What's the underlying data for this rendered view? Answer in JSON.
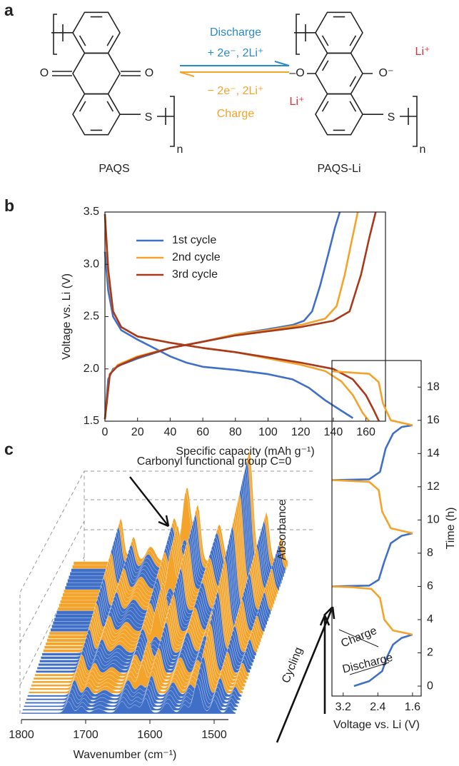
{
  "panel_labels": {
    "a": "a",
    "b": "b",
    "c": "c"
  },
  "scheme": {
    "discharge": "Discharge",
    "discharge_reagents": "+ 2e⁻, 2Li⁺",
    "charge_reagents": "− 2e⁻, 2Li⁺",
    "charge": "Charge",
    "reactant": {
      "name": "PAQS",
      "atoms": [
        "O",
        "O",
        "S",
        "n"
      ]
    },
    "product": {
      "name": "PAQS-Li",
      "atoms": [
        "–O",
        "O⁻",
        "Li⁺",
        "Li⁺",
        "S",
        "n"
      ]
    }
  },
  "chart_data": [
    {
      "type": "line",
      "xlabel": "Specific capacity (mAh g⁻¹)",
      "ylabel": "Voltage vs. Li (V)",
      "xlim": [
        0,
        172
      ],
      "xticks": [
        0,
        20,
        40,
        60,
        80,
        100,
        120,
        140,
        160
      ],
      "ylim": [
        1.5,
        3.5
      ],
      "yticks": [
        1.5,
        {
          "value": 2,
          "label": "2.0"
        },
        2.5,
        {
          "value": 3,
          "label": "3.0"
        },
        3.5
      ],
      "legend": "upper left",
      "series": [
        {
          "name": "1st cycle",
          "color": "#3f6fc6",
          "x": [
            0,
            2,
            5,
            10,
            20,
            30,
            40,
            50,
            60,
            80,
            100,
            115,
            125,
            135,
            145,
            152,
            null,
            0,
            2,
            5,
            10,
            20,
            40,
            60,
            80,
            100,
            115,
            122,
            127,
            132,
            137,
            141,
            144
          ],
          "values": [
            3.12,
            2.75,
            2.5,
            2.37,
            2.28,
            2.2,
            2.12,
            2.06,
            2.02,
            1.99,
            1.95,
            1.9,
            1.82,
            1.7,
            1.6,
            1.53,
            null,
            1.52,
            1.9,
            2.0,
            2.04,
            2.1,
            2.2,
            2.26,
            2.33,
            2.38,
            2.42,
            2.46,
            2.55,
            2.8,
            3.1,
            3.35,
            3.5
          ]
        },
        {
          "name": "2nd cycle",
          "color": "#f4a32b",
          "x": [
            0,
            2,
            5,
            10,
            20,
            40,
            60,
            80,
            100,
            120,
            135,
            145,
            152,
            158,
            162,
            null,
            0,
            3,
            8,
            20,
            40,
            60,
            80,
            100,
            120,
            135,
            142,
            147,
            151,
            155
          ],
          "values": [
            3.45,
            2.9,
            2.55,
            2.4,
            2.31,
            2.25,
            2.2,
            2.16,
            2.1,
            2.04,
            1.98,
            1.88,
            1.75,
            1.58,
            1.5,
            null,
            1.52,
            1.95,
            2.04,
            2.12,
            2.2,
            2.26,
            2.33,
            2.37,
            2.42,
            2.48,
            2.6,
            2.9,
            3.2,
            3.5
          ]
        },
        {
          "name": "3rd cycle",
          "color": "#a8391b",
          "x": [
            0,
            2,
            5,
            10,
            20,
            40,
            60,
            80,
            100,
            120,
            140,
            152,
            160,
            165,
            168,
            null,
            0,
            3,
            8,
            20,
            40,
            60,
            80,
            100,
            120,
            140,
            150,
            157,
            162,
            166
          ],
          "values": [
            3.48,
            2.95,
            2.55,
            2.4,
            2.31,
            2.25,
            2.2,
            2.16,
            2.11,
            2.06,
            2.0,
            1.9,
            1.75,
            1.6,
            1.5,
            null,
            1.52,
            1.95,
            2.03,
            2.11,
            2.2,
            2.26,
            2.32,
            2.36,
            2.4,
            2.46,
            2.55,
            2.9,
            3.25,
            3.5
          ]
        }
      ]
    },
    {
      "type": "line",
      "xlabel": "Voltage vs. Li (V)",
      "ylabel": "Time (h)",
      "xlim": [
        3.46,
        1.4
      ],
      "xticks": [
        3.2,
        2.4,
        1.6
      ],
      "ylim": [
        -0.6,
        19.6
      ],
      "yticks": [
        0,
        2,
        4,
        6,
        8,
        10,
        12,
        14,
        16,
        18
      ],
      "series_labels": "inline",
      "series": [
        {
          "name": "Discharge",
          "color": "#3f6fc6",
          "x": [
            2.95,
            2.6,
            2.3,
            2.18,
            2.05,
            1.85,
            1.6,
            null,
            3.45,
            2.6,
            2.38,
            2.25,
            2.1,
            1.85,
            1.6,
            null,
            3.45,
            2.6,
            2.35,
            2.22,
            2.05,
            1.85,
            1.6
          ],
          "values": [
            0,
            0.3,
            0.9,
            1.8,
            2.5,
            2.9,
            3.1,
            null,
            6.0,
            6.05,
            6.4,
            7.5,
            8.6,
            9.05,
            9.2,
            null,
            12.4,
            12.45,
            12.9,
            14.3,
            15.2,
            15.6,
            15.7
          ]
        },
        {
          "name": "Charge",
          "color": "#f4a32b",
          "x": [
            1.6,
            2.05,
            2.25,
            2.35,
            2.55,
            3.0,
            3.45,
            null,
            1.6,
            2.1,
            2.3,
            2.38,
            2.6,
            3.45,
            null,
            1.6,
            2.1,
            2.28,
            2.38,
            2.6,
            3.45
          ],
          "values": [
            3.1,
            3.35,
            4,
            5.3,
            5.85,
            5.95,
            6.0,
            null,
            9.2,
            9.5,
            10.5,
            11.8,
            12.3,
            12.4,
            null,
            15.7,
            16,
            17,
            18.3,
            18.8,
            18.95
          ]
        }
      ]
    }
  ],
  "waterfall": {
    "annotation": "Carbonyl functional group C=0",
    "z_label": "Absorbance",
    "depth_label": "Cycling",
    "xlabel": "Wavenumber (cm⁻¹)",
    "xticks": [
      1800,
      1700,
      1600,
      1500
    ]
  }
}
